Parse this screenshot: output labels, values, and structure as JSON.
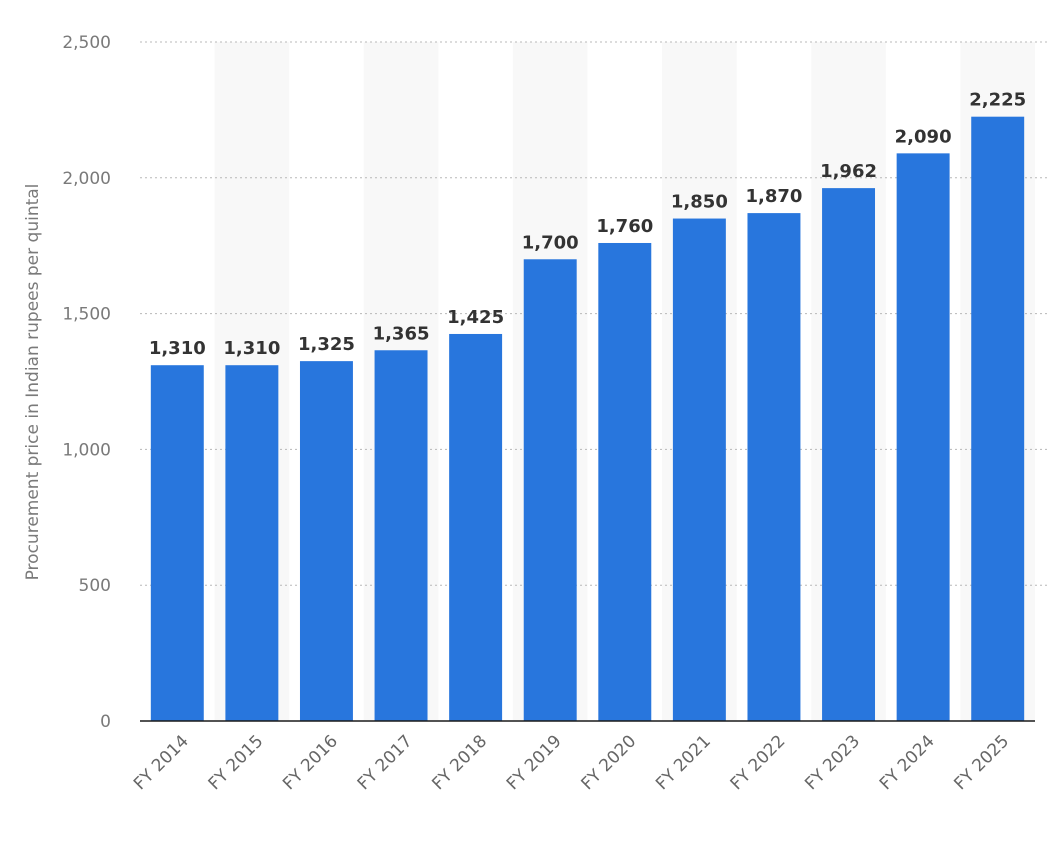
{
  "chart_data": {
    "type": "bar",
    "ylabel": "Procurement price in Indian rupees per quintal",
    "xlabel": "",
    "ylim": [
      0,
      2500
    ],
    "yticks": [
      0,
      500,
      1000,
      1500,
      2000,
      2500
    ],
    "ytick_labels": [
      "0",
      "500",
      "1,000",
      "1,500",
      "2,000",
      "2,500"
    ],
    "grid": true,
    "legend": "none",
    "bar_color": "#2876dd",
    "categories": [
      "FY 2014",
      "FY 2015",
      "FY 2016",
      "FY 2017",
      "FY 2018",
      "FY 2019",
      "FY 2020",
      "FY 2021",
      "FY 2022",
      "FY 2023",
      "FY 2024",
      "FY 2025"
    ],
    "values": [
      1310,
      1310,
      1325,
      1365,
      1425,
      1700,
      1760,
      1850,
      1870,
      1962,
      2090,
      2225
    ],
    "value_labels": [
      "1,310",
      "1,310",
      "1,325",
      "1,365",
      "1,425",
      "1,700",
      "1,760",
      "1,850",
      "1,870",
      "1,962",
      "2,090",
      "2,225"
    ]
  }
}
